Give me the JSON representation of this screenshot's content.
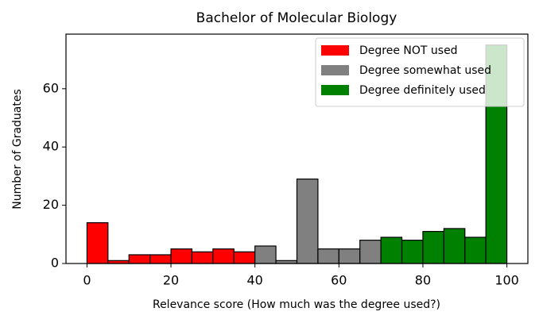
{
  "chart_data": {
    "type": "histogram",
    "title": "Bachelor of Molecular Biology",
    "x_label": "Relevance score (How much was the degree used?)",
    "y_label": "Number of Graduates",
    "series": [
      {
        "name": "Degree NOT used",
        "color": "#ff0000",
        "bins": [
          0,
          5,
          10,
          15,
          20,
          25,
          30,
          35,
          40
        ],
        "values": [
          14,
          1,
          3,
          3,
          5,
          4,
          5,
          4
        ]
      },
      {
        "name": "Degree somewhat used",
        "color": "#808080",
        "bins": [
          40,
          45,
          50,
          55,
          60,
          65,
          70
        ],
        "values": [
          6,
          1,
          29,
          5,
          5,
          8
        ]
      },
      {
        "name": "Degree definitely used",
        "color": "#008000",
        "bins": [
          70,
          75,
          80,
          85,
          90,
          95,
          100
        ],
        "values": [
          9,
          8,
          11,
          12,
          9,
          75
        ]
      }
    ],
    "xlim": [
      -5,
      105
    ],
    "ylim": [
      0,
      78.75
    ],
    "xticks": [
      0,
      20,
      40,
      60,
      80,
      100
    ],
    "yticks": [
      0,
      20,
      40,
      60
    ],
    "legend": "upper right"
  }
}
